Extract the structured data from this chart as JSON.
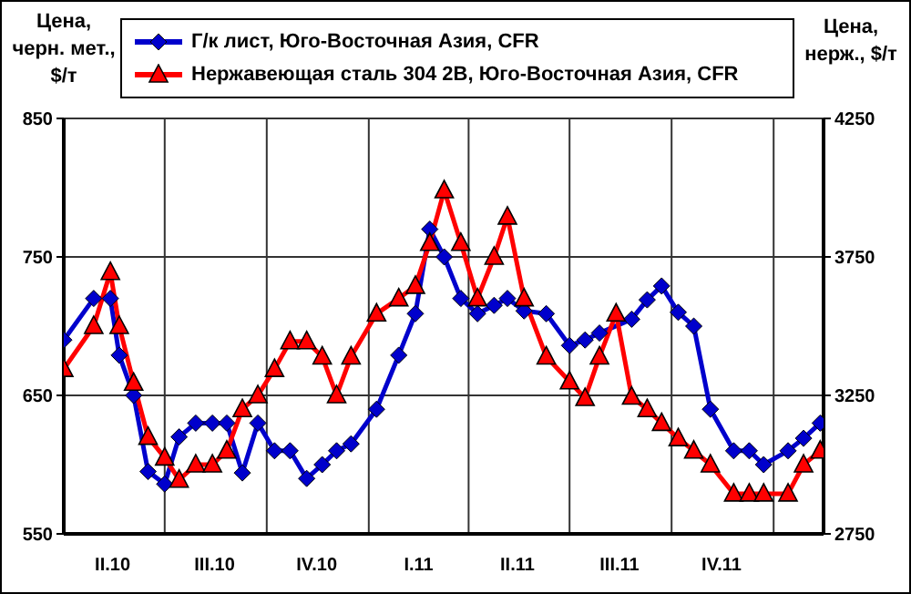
{
  "chart_data": {
    "type": "line",
    "xlabel": null,
    "ylabel": "Цена, черн. мет., $/т",
    "y2label": "Цена, нерж., $/т",
    "xlim": [
      "2010-04-01",
      "2012-02-15"
    ],
    "xticks": [
      {
        "value": "2010-05-15",
        "label": "II.10"
      },
      {
        "value": "2010-07-01",
        "label": null
      },
      {
        "value": "2010-08-15",
        "label": "III.10"
      },
      {
        "value": "2010-10-01",
        "label": null
      },
      {
        "value": "2010-11-15",
        "label": "IV.10"
      },
      {
        "value": "2011-01-01",
        "label": null
      },
      {
        "value": "2011-02-15",
        "label": "I.11"
      },
      {
        "value": "2011-04-01",
        "label": null
      },
      {
        "value": "2011-05-15",
        "label": "II.11"
      },
      {
        "value": "2011-07-01",
        "label": null
      },
      {
        "value": "2011-08-15",
        "label": "III.11"
      },
      {
        "value": "2011-10-01",
        "label": null
      },
      {
        "value": "2011-11-15",
        "label": "IV.11"
      },
      {
        "value": "2012-01-01",
        "label": null
      }
    ],
    "ylim": [
      550,
      850
    ],
    "yticks": [
      550,
      650,
      750,
      850
    ],
    "y2lim": [
      2750,
      4250
    ],
    "y2ticks": [
      2750,
      3250,
      3750,
      4250
    ],
    "grid": true,
    "legend": "top",
    "series": [
      {
        "name": "Г/к лист, Юго-Восточная Азия, CFR",
        "color": "#0000cc",
        "marker": "diamond",
        "x": [
          "2010-04-01",
          "2010-04-28",
          "2010-05-13",
          "2010-05-21",
          "2010-06-03",
          "2010-06-16",
          "2010-07-01",
          "2010-07-14",
          "2010-07-29",
          "2010-08-13",
          "2010-08-26",
          "2010-09-09",
          "2010-09-23",
          "2010-10-08",
          "2010-10-22",
          "2010-11-06",
          "2010-11-20",
          "2010-12-03",
          "2010-12-16",
          "2011-01-08",
          "2011-01-28",
          "2011-02-12",
          "2011-02-25",
          "2011-03-10",
          "2011-03-25",
          "2011-04-09",
          "2011-04-24",
          "2011-05-06",
          "2011-05-21",
          "2011-06-10",
          "2011-07-01",
          "2011-07-15",
          "2011-07-28",
          "2011-08-26",
          "2011-09-09",
          "2011-09-22",
          "2011-10-07",
          "2011-10-21",
          "2011-11-05",
          "2011-11-26",
          "2011-12-10",
          "2011-12-23",
          "2012-01-14",
          "2012-01-28",
          "2012-02-12"
        ],
        "values": [
          690,
          720,
          720,
          679,
          650,
          595,
          586,
          620,
          630,
          630,
          630,
          594,
          630,
          610,
          610,
          590,
          600,
          610,
          615,
          640,
          679,
          709,
          770,
          750,
          720,
          709,
          715,
          720,
          711,
          709,
          686,
          690,
          695,
          705,
          719,
          729,
          710,
          700,
          640,
          610,
          610,
          600,
          610,
          619,
          630
        ]
      },
      {
        "name": "Нержавеющая сталь 304 2B, Юго-Восточная Азия, CFR",
        "color": "#ff0000",
        "marker": "triangle",
        "axis": "y2",
        "x": [
          "2010-04-01",
          "2010-04-28",
          "2010-05-13",
          "2010-05-21",
          "2010-06-03",
          "2010-06-16",
          "2010-07-01",
          "2010-07-14",
          "2010-07-29",
          "2010-08-13",
          "2010-08-26",
          "2010-09-09",
          "2010-09-23",
          "2010-10-08",
          "2010-10-22",
          "2010-11-06",
          "2010-11-20",
          "2010-12-03",
          "2010-12-16",
          "2011-01-08",
          "2011-01-28",
          "2011-02-12",
          "2011-02-25",
          "2011-03-10",
          "2011-03-25",
          "2011-04-09",
          "2011-04-24",
          "2011-05-06",
          "2011-05-21",
          "2011-06-10",
          "2011-07-01",
          "2011-07-15",
          "2011-07-28",
          "2011-08-12",
          "2011-08-26",
          "2011-09-09",
          "2011-09-22",
          "2011-10-07",
          "2011-10-21",
          "2011-11-05",
          "2011-11-26",
          "2011-12-10",
          "2011-12-23",
          "2012-01-14",
          "2012-01-28",
          "2012-02-12"
        ],
        "values": [
          3345,
          3500,
          3695,
          3500,
          3295,
          3100,
          3025,
          2945,
          3000,
          3000,
          3050,
          3200,
          3250,
          3345,
          3445,
          3445,
          3390,
          3250,
          3390,
          3545,
          3600,
          3645,
          3800,
          3990,
          3800,
          3600,
          3750,
          3895,
          3600,
          3390,
          3300,
          3240,
          3390,
          3545,
          3245,
          3200,
          3150,
          3095,
          3050,
          3000,
          2895,
          2895,
          2895,
          2895,
          3000,
          3050
        ]
      }
    ]
  }
}
